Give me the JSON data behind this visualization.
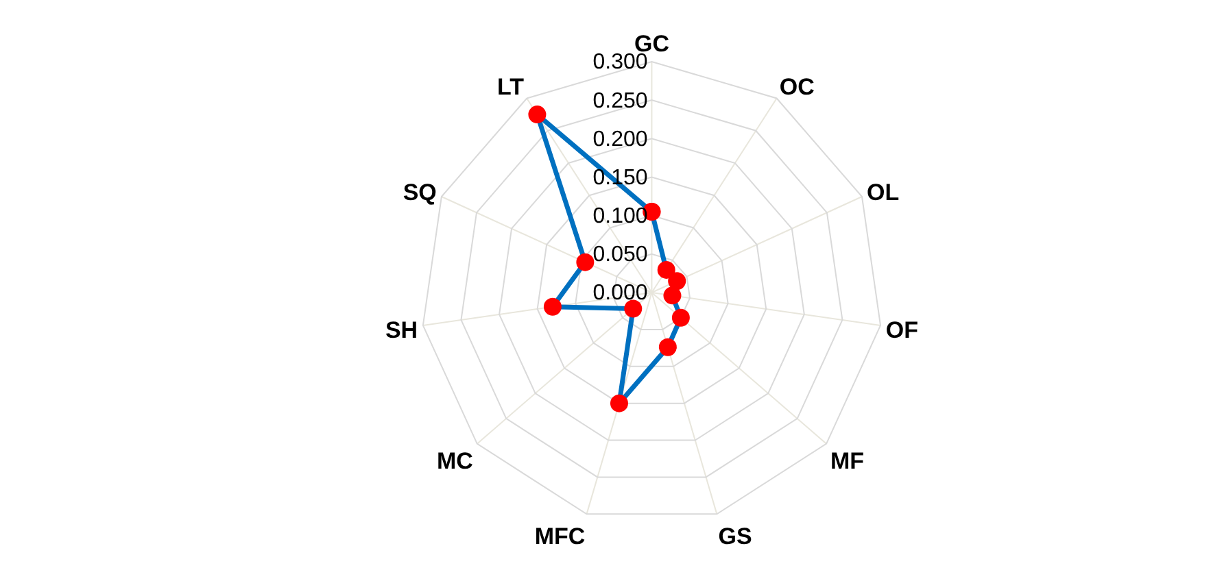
{
  "chart_data": {
    "type": "radar",
    "categories": [
      "GC",
      "OC",
      "OL",
      "OF",
      "MF",
      "GS",
      "MFC",
      "MC",
      "SH",
      "SQ",
      "LT"
    ],
    "series": [
      {
        "color": "#0070c0",
        "colors": [
          "#ff0000",
          "#ff0000",
          "#ff0000",
          "#ff0000",
          "#ff0000",
          "#ff0000",
          "#ff0000",
          "#ff0000",
          "#ff0000",
          "#ff0000",
          "#ff0000"
        ],
        "values": [
          0.105,
          0.035,
          0.036,
          0.027,
          0.05,
          0.074,
          0.15,
          0.032,
          0.13,
          0.095,
          0.275
        ]
      }
    ],
    "ylim": [
      0,
      0.3
    ],
    "yticks": [
      {
        "value": 0,
        "label": "0.000"
      },
      {
        "value": 0.05,
        "label": "0.050"
      },
      {
        "value": 0.1,
        "label": "0.100"
      },
      {
        "value": 0.15,
        "label": "0.150"
      },
      {
        "value": 0.2,
        "label": "0.200"
      },
      {
        "value": 0.25,
        "label": "0.250"
      },
      {
        "value": 0.3,
        "label": "0.300"
      }
    ],
    "marker": "circle",
    "line_style": "solid",
    "grid": true,
    "legend": false
  }
}
